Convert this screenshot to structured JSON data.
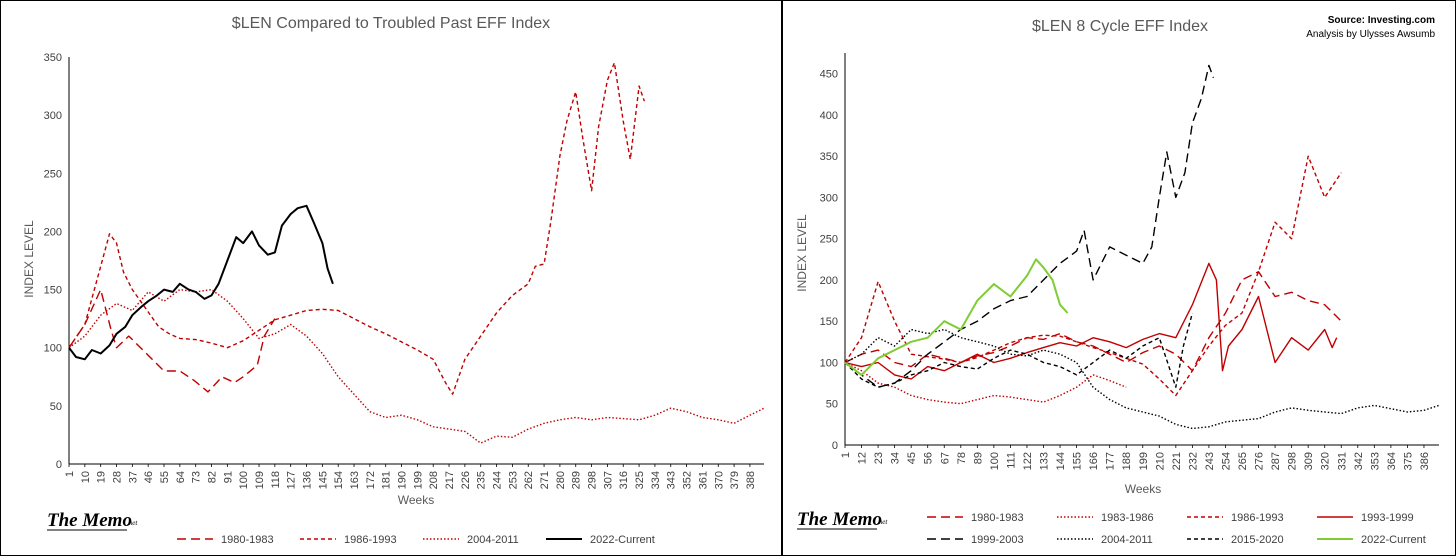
{
  "branding": {
    "memo": "The Memo",
    "memo_suffix": ".net"
  },
  "chart_data": [
    {
      "type": "line",
      "title": "$LEN Compared to Troubled Past EFF Index",
      "xlabel": "Weeks",
      "ylabel": "INDEX LEVEL",
      "xlim": [
        1,
        396
      ],
      "ylim": [
        0,
        350
      ],
      "yticks": [
        0,
        50,
        100,
        150,
        200,
        250,
        300,
        350
      ],
      "xticks": [
        1,
        10,
        19,
        28,
        37,
        46,
        55,
        64,
        73,
        82,
        91,
        100,
        109,
        118,
        127,
        136,
        145,
        154,
        163,
        172,
        181,
        190,
        199,
        208,
        217,
        226,
        235,
        244,
        253,
        262,
        271,
        280,
        289,
        298,
        307,
        316,
        325,
        334,
        343,
        352,
        361,
        370,
        379,
        388
      ],
      "grid": false,
      "legend_position": "bottom",
      "series": [
        {
          "name": "1980-1983",
          "color": "#c00000",
          "dash": "dashed",
          "x": [
            1,
            10,
            19,
            25,
            28,
            35,
            45,
            55,
            64,
            72,
            80,
            88,
            95,
            100,
            108,
            112,
            118
          ],
          "y": [
            100,
            120,
            150,
            115,
            100,
            110,
            95,
            80,
            80,
            72,
            62,
            75,
            70,
            75,
            85,
            110,
            125
          ]
        },
        {
          "name": "1986-1993",
          "color": "#c00000",
          "dash": "shortdash",
          "x": [
            1,
            10,
            19,
            24,
            28,
            32,
            37,
            44,
            52,
            58,
            64,
            73,
            82,
            91,
            100,
            109,
            118,
            127,
            136,
            145,
            154,
            163,
            172,
            181,
            190,
            199,
            208,
            215,
            219,
            226,
            235,
            244,
            253,
            262,
            266,
            271,
            275,
            280,
            284,
            289,
            293,
            298,
            302,
            307,
            311,
            316,
            320,
            325,
            328
          ],
          "y": [
            100,
            120,
            170,
            198,
            190,
            165,
            150,
            135,
            118,
            112,
            108,
            107,
            104,
            100,
            106,
            115,
            124,
            128,
            132,
            133,
            132,
            125,
            118,
            112,
            105,
            98,
            90,
            70,
            60,
            90,
            110,
            130,
            145,
            155,
            170,
            172,
            210,
            265,
            295,
            320,
            280,
            235,
            290,
            330,
            345,
            295,
            262,
            325,
            312
          ]
        },
        {
          "name": "2004-2011",
          "color": "#c00000",
          "dash": "dotted",
          "x": [
            1,
            10,
            19,
            28,
            37,
            46,
            55,
            64,
            73,
            82,
            91,
            100,
            109,
            118,
            127,
            136,
            145,
            154,
            163,
            172,
            181,
            190,
            199,
            208,
            217,
            226,
            235,
            244,
            253,
            262,
            271,
            280,
            289,
            298,
            307,
            316,
            325,
            334,
            343,
            352,
            361,
            370,
            379,
            388,
            396
          ],
          "y": [
            100,
            110,
            128,
            138,
            132,
            148,
            140,
            150,
            148,
            150,
            140,
            125,
            108,
            112,
            120,
            110,
            95,
            75,
            60,
            45,
            40,
            42,
            38,
            32,
            30,
            28,
            18,
            24,
            23,
            30,
            35,
            38,
            40,
            38,
            40,
            39,
            38,
            42,
            48,
            45,
            40,
            38,
            35,
            42,
            48
          ]
        },
        {
          "name": "2022-Current",
          "color": "#000000",
          "dash": "solid",
          "x": [
            1,
            5,
            10,
            14,
            19,
            24,
            28,
            33,
            37,
            42,
            46,
            51,
            55,
            60,
            64,
            69,
            73,
            78,
            82,
            86,
            91,
            96,
            100,
            105,
            109,
            114,
            118,
            122,
            127,
            131,
            136,
            140,
            145,
            148,
            151
          ],
          "y": [
            100,
            92,
            90,
            98,
            95,
            102,
            112,
            118,
            128,
            135,
            140,
            145,
            150,
            148,
            155,
            150,
            148,
            142,
            145,
            155,
            175,
            195,
            190,
            200,
            188,
            180,
            182,
            205,
            215,
            220,
            222,
            208,
            190,
            168,
            155
          ]
        }
      ]
    },
    {
      "type": "line",
      "title": "$LEN  8 Cycle EFF Index",
      "source": "Source: Investing.com",
      "analysis": "Analysis by Ulysses Awsumb",
      "xlabel": "Weeks",
      "ylabel": "INDEX LEVEL",
      "xlim": [
        1,
        396
      ],
      "ylim": [
        0,
        475
      ],
      "yticks": [
        0,
        50,
        100,
        150,
        200,
        250,
        300,
        350,
        400,
        450
      ],
      "xticks": [
        1,
        12,
        23,
        34,
        45,
        56,
        67,
        78,
        89,
        100,
        111,
        122,
        133,
        144,
        155,
        166,
        177,
        188,
        199,
        210,
        221,
        232,
        243,
        254,
        265,
        276,
        287,
        298,
        309,
        320,
        331,
        342,
        353,
        364,
        375,
        386
      ],
      "grid": false,
      "legend_position": "bottom",
      "series": [
        {
          "name": "1980-1983",
          "color": "#c00000",
          "dash": "dashed",
          "x": [
            1,
            12,
            23,
            34,
            45,
            56,
            67,
            78,
            89,
            100,
            111,
            122,
            133,
            144,
            155,
            166,
            177,
            188,
            199,
            210,
            221,
            232,
            243,
            254,
            265,
            276,
            287,
            298,
            309,
            320,
            331
          ],
          "y": [
            100,
            110,
            115,
            100,
            95,
            110,
            105,
            100,
            108,
            112,
            120,
            130,
            128,
            135,
            125,
            120,
            110,
            100,
            112,
            120,
            110,
            90,
            130,
            160,
            200,
            210,
            180,
            185,
            175,
            170,
            150
          ]
        },
        {
          "name": "1983-1986",
          "color": "#c00000",
          "dash": "dotted",
          "x": [
            1,
            12,
            23,
            34,
            45,
            56,
            67,
            78,
            89,
            100,
            111,
            122,
            133,
            144,
            155,
            166,
            177,
            188
          ],
          "y": [
            100,
            90,
            75,
            70,
            60,
            55,
            52,
            50,
            55,
            60,
            58,
            55,
            52,
            60,
            70,
            85,
            78,
            70
          ]
        },
        {
          "name": "1986-1993",
          "color": "#c00000",
          "dash": "shortdash",
          "x": [
            1,
            12,
            23,
            34,
            45,
            56,
            67,
            78,
            89,
            100,
            111,
            122,
            133,
            144,
            155,
            166,
            177,
            188,
            199,
            210,
            221,
            232,
            243,
            254,
            265,
            276,
            287,
            298,
            309,
            320,
            331
          ],
          "y": [
            100,
            130,
            198,
            150,
            110,
            107,
            104,
            100,
            106,
            115,
            124,
            130,
            133,
            132,
            125,
            118,
            112,
            105,
            98,
            80,
            60,
            90,
            120,
            145,
            160,
            210,
            270,
            250,
            350,
            300,
            330
          ]
        },
        {
          "name": "1993-1999",
          "color": "#c00000",
          "dash": "solid",
          "x": [
            1,
            12,
            23,
            34,
            45,
            56,
            67,
            78,
            89,
            100,
            111,
            122,
            133,
            144,
            155,
            166,
            177,
            188,
            199,
            210,
            221,
            232,
            243,
            248,
            252,
            256,
            265,
            276,
            287,
            298,
            309,
            320,
            325,
            328
          ],
          "y": [
            100,
            95,
            100,
            85,
            80,
            95,
            90,
            100,
            110,
            100,
            105,
            112,
            118,
            124,
            120,
            130,
            125,
            118,
            128,
            135,
            130,
            170,
            220,
            200,
            90,
            120,
            140,
            180,
            100,
            130,
            115,
            140,
            118,
            130
          ]
        },
        {
          "name": "1999-2003",
          "color": "#000000",
          "dash": "dashed",
          "x": [
            1,
            12,
            23,
            34,
            45,
            56,
            67,
            78,
            89,
            100,
            111,
            122,
            133,
            144,
            155,
            160,
            166,
            177,
            188,
            199,
            205,
            210,
            215,
            221,
            227,
            232,
            238,
            243,
            246
          ],
          "y": [
            100,
            85,
            70,
            75,
            90,
            110,
            125,
            140,
            150,
            165,
            175,
            180,
            200,
            220,
            235,
            260,
            200,
            240,
            230,
            220,
            240,
            300,
            355,
            300,
            330,
            390,
            420,
            460,
            445
          ]
        },
        {
          "name": "2004-2011",
          "color": "#000000",
          "dash": "dotted",
          "x": [
            1,
            12,
            23,
            34,
            45,
            56,
            67,
            78,
            89,
            100,
            111,
            122,
            133,
            144,
            155,
            166,
            177,
            188,
            199,
            210,
            221,
            232,
            243,
            254,
            265,
            276,
            287,
            298,
            309,
            320,
            331,
            342,
            353,
            364,
            375,
            386,
            396
          ],
          "y": [
            100,
            110,
            130,
            120,
            140,
            135,
            140,
            130,
            125,
            120,
            110,
            108,
            115,
            110,
            100,
            70,
            55,
            45,
            40,
            35,
            25,
            20,
            22,
            28,
            30,
            32,
            40,
            45,
            42,
            40,
            38,
            45,
            48,
            44,
            40,
            42,
            48
          ]
        },
        {
          "name": "2015-2020",
          "color": "#000000",
          "dash": "shortdash",
          "x": [
            1,
            12,
            23,
            34,
            45,
            56,
            67,
            78,
            89,
            100,
            111,
            122,
            133,
            144,
            155,
            166,
            177,
            188,
            199,
            210,
            221,
            226,
            232
          ],
          "y": [
            100,
            80,
            70,
            75,
            85,
            90,
            100,
            95,
            92,
            105,
            115,
            110,
            100,
            95,
            85,
            100,
            115,
            105,
            120,
            130,
            70,
            120,
            160
          ]
        },
        {
          "name": "2022-Current",
          "color": "#7fcc33",
          "dash": "solid",
          "x": [
            1,
            12,
            23,
            34,
            45,
            56,
            67,
            78,
            89,
            100,
            111,
            122,
            128,
            133,
            139,
            144,
            149
          ],
          "y": [
            100,
            85,
            105,
            115,
            125,
            130,
            150,
            140,
            175,
            195,
            180,
            205,
            225,
            215,
            200,
            170,
            160
          ]
        }
      ]
    }
  ]
}
